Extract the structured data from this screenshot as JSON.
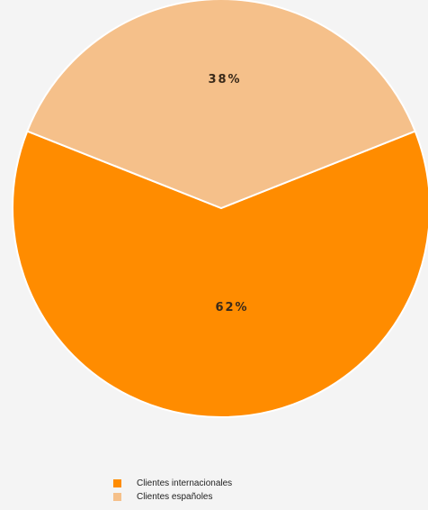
{
  "chart_data": {
    "type": "pie",
    "title": "",
    "slices": [
      {
        "name": "Clientes internacionales",
        "value": 62,
        "label": "62%",
        "color": "#ff8c00"
      },
      {
        "name": "Clientes españoles",
        "value": 38,
        "label": "38%",
        "color": "#f5c08a"
      }
    ],
    "legend": {
      "placement": "bottom-left",
      "items": [
        "Clientes internacionales",
        "Clientes españoles"
      ]
    }
  }
}
